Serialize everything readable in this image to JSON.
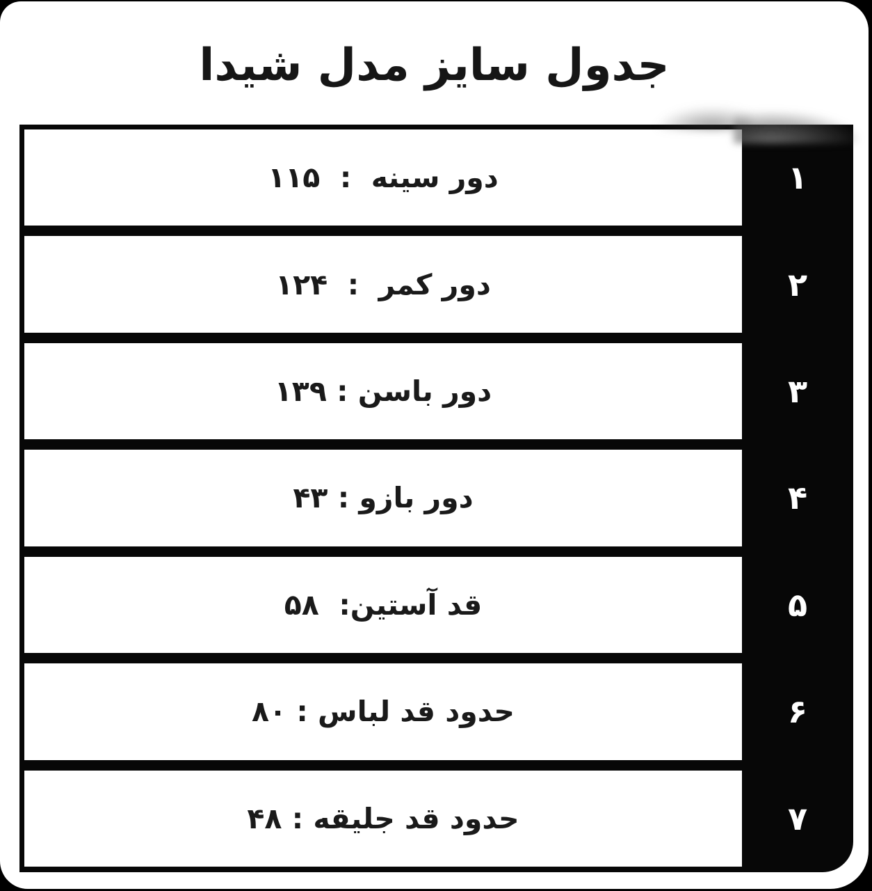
{
  "title": "جدول سایز مدل شیدا",
  "rows": [
    {
      "num": "۱",
      "label": "دور سینه",
      "value": "۱۱۵",
      "display": "دور سینه  :  ۱۱۵"
    },
    {
      "num": "۲",
      "label": "دور کمر",
      "value": "۱۲۴",
      "display": "دور کمر  :  ۱۲۴"
    },
    {
      "num": "۳",
      "label": "دور باسن",
      "value": "۱۳۹",
      "display": "دور باسن : ۱۳۹"
    },
    {
      "num": "۴",
      "label": "دور بازو",
      "value": "۴۳",
      "display": "دور بازو : ۴۳"
    },
    {
      "num": "۵",
      "label": "قد آستین",
      "value": "۵۸",
      "display": "قد آستین:  ۵۸"
    },
    {
      "num": "۶",
      "label": "حدود قد لباس",
      "value": "۸۰",
      "display": "حدود قد لباس : ۸۰"
    },
    {
      "num": "۷",
      "label": "حدود قد جلیقه",
      "value": "۴۸",
      "display": "حدود قد جلیقه : ۴۸"
    }
  ],
  "chart_data": {
    "type": "table",
    "title": "جدول سایز مدل شیدا",
    "rows": [
      {
        "row": 1,
        "label": "دور سینه",
        "value": 115
      },
      {
        "row": 2,
        "label": "دور کمر",
        "value": 124
      },
      {
        "row": 3,
        "label": "دور باسن",
        "value": 139
      },
      {
        "row": 4,
        "label": "دور بازو",
        "value": 43
      },
      {
        "row": 5,
        "label": "قد آستین",
        "value": 58
      },
      {
        "row": 6,
        "label": "حدود قد لباس",
        "value": 80
      },
      {
        "row": 7,
        "label": "حدود قد جلیقه",
        "value": 48
      }
    ],
    "layout": {
      "direction": "rtl",
      "row_numbers_position": "right-sidebar"
    }
  },
  "colors": {
    "background": "#000000",
    "card": "#ffffff",
    "row_background": "#ffffff",
    "table_border": "#070707",
    "sidebar_background": "#070707",
    "sidebar_number": "#ffffff",
    "text": "#1a1a1a"
  }
}
